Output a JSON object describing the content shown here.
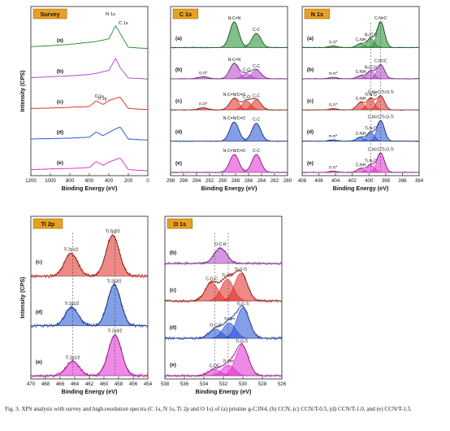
{
  "caption": "Fig. 3. XPS analysis with survey and high-resolution spectra (C 1s, N 1s, Ti 2p and O 1s) of (a) pristine g-C3N4, (b) CCN, (c) CCN/T-0.5, (d) CCN/T-1.0, and (e) CCN/T-1.5.",
  "colors": {
    "a": "#1e8b2a",
    "b": "#b040c8",
    "c": "#e02a20",
    "d": "#1f4fd6",
    "e": "#e02ad0",
    "fit": "#111111"
  },
  "chart_data": [
    {
      "id": "survey",
      "type": "line",
      "title": "Survey",
      "xlabel": "Binding Energy (eV)",
      "ylabel": "Intensity (CPS)",
      "xlim": [
        1200,
        0
      ],
      "x_ticks": [
        1200,
        1000,
        800,
        600,
        400,
        200,
        0
      ],
      "peak_labels": [
        "N 1s",
        "C 1s",
        "Ti 2p",
        "O 1s"
      ],
      "series": [
        {
          "name": "(a)",
          "x": [
            1200,
            1000,
            800,
            600,
            540,
            400,
            330,
            285,
            200,
            0
          ],
          "y": [
            0.08,
            0.12,
            0.18,
            0.27,
            0.3,
            0.42,
            1.0,
            0.66,
            0.05,
            0.0
          ]
        },
        {
          "name": "(b)",
          "x": [
            1200,
            1000,
            800,
            600,
            540,
            400,
            330,
            285,
            200,
            0
          ],
          "y": [
            0.06,
            0.1,
            0.14,
            0.2,
            0.24,
            0.38,
            0.9,
            0.5,
            0.05,
            0.0
          ]
        },
        {
          "name": "(c)",
          "x": [
            1200,
            1000,
            800,
            600,
            531,
            459,
            400,
            285,
            200,
            0
          ],
          "y": [
            0.05,
            0.07,
            0.1,
            0.14,
            0.38,
            0.22,
            0.4,
            0.55,
            0.05,
            0.0
          ]
        },
        {
          "name": "(d)",
          "x": [
            1200,
            1000,
            800,
            600,
            531,
            459,
            400,
            285,
            200,
            0
          ],
          "y": [
            0.05,
            0.07,
            0.09,
            0.13,
            0.36,
            0.2,
            0.34,
            0.58,
            0.05,
            0.0
          ]
        },
        {
          "name": "(e)",
          "x": [
            1200,
            1000,
            800,
            600,
            531,
            459,
            400,
            285,
            200,
            0
          ],
          "y": [
            0.05,
            0.08,
            0.1,
            0.14,
            0.4,
            0.24,
            0.38,
            0.56,
            0.05,
            0.0
          ]
        }
      ]
    },
    {
      "id": "c1s",
      "type": "line",
      "title": "C 1s",
      "xlabel": "Binding Energy (eV)",
      "ylabel": "",
      "xlim": [
        298,
        280
      ],
      "x_ticks": [
        298,
        296,
        294,
        292,
        290,
        288,
        286,
        284,
        282,
        280
      ],
      "series": [
        {
          "name": "(a)",
          "peaks": [
            {
              "label": "N-C=N",
              "center": 288.2,
              "height": 1.0
            },
            {
              "label": "C-C",
              "center": 284.8,
              "height": 0.55
            }
          ]
        },
        {
          "name": "(b)",
          "peaks": [
            {
              "label": "N-C=N",
              "center": 288.2,
              "height": 0.6
            },
            {
              "label": "C-O",
              "center": 286.3,
              "height": 0.2
            },
            {
              "label": "C-C",
              "center": 284.8,
              "height": 0.35
            },
            {
              "label": "π-π*",
              "center": 293.0,
              "height": 0.08
            }
          ]
        },
        {
          "name": "(c)",
          "peaks": [
            {
              "label": "N-C=N/C=O",
              "center": 288.2,
              "height": 0.45
            },
            {
              "label": "C-O",
              "center": 286.3,
              "height": 0.35
            },
            {
              "label": "C-C",
              "center": 284.8,
              "height": 0.4
            },
            {
              "label": "π-π*",
              "center": 293.0,
              "height": 0.08
            }
          ]
        },
        {
          "name": "(d)",
          "peaks": [
            {
              "label": "N-C=N/C=O",
              "center": 288.2,
              "height": 0.75
            },
            {
              "label": "C-C",
              "center": 284.8,
              "height": 0.7
            }
          ]
        },
        {
          "name": "(e)",
          "peaks": [
            {
              "label": "N-C=N/C=O",
              "center": 288.2,
              "height": 0.7
            },
            {
              "label": "C-C",
              "center": 284.8,
              "height": 0.7
            }
          ]
        }
      ]
    },
    {
      "id": "n1s",
      "type": "line",
      "title": "N 1s",
      "xlabel": "Binding Energy (eV)",
      "ylabel": "",
      "xlim": [
        408,
        394
      ],
      "x_ticks": [
        408,
        406,
        404,
        402,
        400,
        398,
        396,
        394
      ],
      "series": [
        {
          "name": "(a)",
          "peaks": [
            {
              "label": "C-N=C",
              "center": 398.6,
              "height": 1.0
            },
            {
              "label": "N-(C)3",
              "center": 399.8,
              "height": 0.35
            },
            {
              "label": "C-NH",
              "center": 401.0,
              "height": 0.15
            },
            {
              "label": "π-π*",
              "center": 404.3,
              "height": 0.06
            }
          ]
        },
        {
          "name": "(b)",
          "peaks": [
            {
              "label": "C-N=C",
              "center": 398.6,
              "height": 0.55
            },
            {
              "label": "N-(C)3",
              "center": 399.8,
              "height": 0.3
            },
            {
              "label": "C-NH",
              "center": 401.0,
              "height": 0.12
            },
            {
              "label": "π-π*",
              "center": 404.3,
              "height": 0.05
            }
          ]
        },
        {
          "name": "(c)",
          "peaks": [
            {
              "label": "C-N=C/Ti-O-Ti",
              "center": 398.6,
              "height": 0.55
            },
            {
              "label": "Ti-N-O",
              "center": 399.8,
              "height": 0.45
            },
            {
              "label": "C-NH",
              "center": 401.0,
              "height": 0.3
            },
            {
              "label": "π-π*",
              "center": 404.3,
              "height": 0.05
            }
          ]
        },
        {
          "name": "(d)",
          "peaks": [
            {
              "label": "C-N=C/Ti-O-Ti",
              "center": 398.6,
              "height": 0.8
            },
            {
              "label": "Ti-N-O",
              "center": 399.8,
              "height": 0.35
            },
            {
              "label": "C-NH",
              "center": 401.0,
              "height": 0.15
            },
            {
              "label": "π-π*",
              "center": 404.3,
              "height": 0.05
            }
          ]
        },
        {
          "name": "(e)",
          "peaks": [
            {
              "label": "C-N=C/Ti-O-Ti",
              "center": 398.6,
              "height": 0.75
            },
            {
              "label": "Ti-N-O",
              "center": 399.8,
              "height": 0.3
            },
            {
              "label": "C-NH",
              "center": 401.0,
              "height": 0.15
            },
            {
              "label": "π-π*",
              "center": 404.3,
              "height": 0.05
            }
          ]
        }
      ]
    },
    {
      "id": "ti2p",
      "type": "line",
      "title": "Ti 2p",
      "xlabel": "Binding Energy (eV)",
      "ylabel": "Intensity (CPS)",
      "xlim": [
        470,
        454
      ],
      "x_ticks": [
        470,
        468,
        466,
        464,
        462,
        460,
        458,
        456,
        454
      ],
      "series": [
        {
          "name": "(c)",
          "peaks": [
            {
              "label": "Ti 2p1/2",
              "center": 464.5,
              "height": 0.55
            },
            {
              "label": "Ti 2p3/2",
              "center": 458.8,
              "height": 1.0
            }
          ]
        },
        {
          "name": "(d)",
          "peaks": [
            {
              "label": "Ti 2p1/2",
              "center": 464.4,
              "height": 0.45
            },
            {
              "label": "Ti 2p3/2",
              "center": 458.6,
              "height": 1.0
            }
          ]
        },
        {
          "name": "(e)",
          "peaks": [
            {
              "label": "Ti 2p1/2",
              "center": 464.3,
              "height": 0.35
            },
            {
              "label": "Ti 2p3/2",
              "center": 458.5,
              "height": 1.0
            }
          ]
        }
      ]
    },
    {
      "id": "o1s",
      "type": "line",
      "title": "O 1s",
      "xlabel": "Binding Energy (eV)",
      "ylabel": "",
      "xlim": [
        538,
        526
      ],
      "x_ticks": [
        538,
        536,
        534,
        532,
        530,
        528,
        526
      ],
      "series": [
        {
          "name": "(b)",
          "peaks": [
            {
              "label": "O-C-N",
              "center": 532.3,
              "height": 0.5
            }
          ]
        },
        {
          "name": "(c)",
          "peaks": [
            {
              "label": "C-O-C",
              "center": 533.2,
              "height": 0.6
            },
            {
              "label": "Ti-OH",
              "center": 531.6,
              "height": 0.7
            },
            {
              "label": "Ti-O-Ti",
              "center": 530.2,
              "height": 0.9
            }
          ]
        },
        {
          "name": "(d)",
          "peaks": [
            {
              "label": "O-C-O",
              "center": 532.8,
              "height": 0.3
            },
            {
              "label": "Ti-OH",
              "center": 531.4,
              "height": 0.5
            },
            {
              "label": "Ti-O-Ti",
              "center": 530.0,
              "height": 1.0
            }
          ]
        },
        {
          "name": "(e)",
          "peaks": [
            {
              "label": "C-OC",
              "center": 532.9,
              "height": 0.2
            },
            {
              "label": "Ti-OH",
              "center": 531.5,
              "height": 0.35
            },
            {
              "label": "Ti-O-Ti",
              "center": 530.1,
              "height": 1.0
            }
          ]
        }
      ]
    }
  ]
}
